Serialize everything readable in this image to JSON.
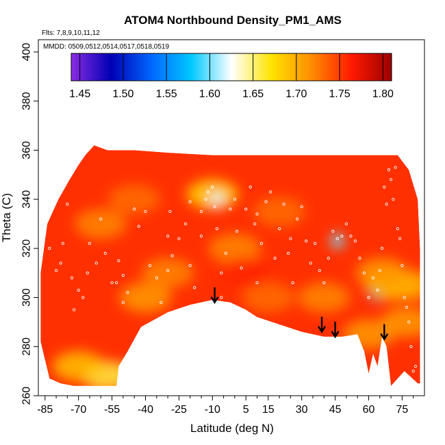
{
  "chart_data": {
    "type": "heatmap",
    "title": "ATOM4 Northbound Density_PM1_AMS",
    "annotations": {
      "flights": "Flts: 7,8,9,10,11,12",
      "dates": "MMDD: 0509,0512,0514,0517,0518,0519"
    },
    "xlabel": "Latitude (deg N)",
    "ylabel": "Theta (C)",
    "xlim": [
      -88,
      85
    ],
    "ylim": [
      260,
      405
    ],
    "x_ticks": [
      -85,
      -70,
      -55,
      -40,
      -25,
      -10,
      5,
      15,
      30,
      45,
      60,
      75
    ],
    "x_tick_labels": [
      "-85",
      "-70",
      "-55",
      "-40",
      "-25",
      "-10",
      "5",
      "15",
      "30",
      "45",
      "60",
      "75"
    ],
    "x_minor_ticks": [
      -80,
      -75,
      -65,
      -60,
      -50,
      -45,
      -35,
      -30,
      -20,
      -15,
      -5,
      0,
      10,
      20,
      25,
      35,
      40,
      50,
      55,
      65,
      70,
      80
    ],
    "y_ticks": [
      260,
      280,
      300,
      320,
      340,
      360,
      380,
      400
    ],
    "y_tick_labels": [
      "260",
      "280",
      "300",
      "320",
      "340",
      "360",
      "380",
      "400"
    ],
    "colorbar": {
      "range": [
        1.44,
        1.81
      ],
      "ticks": [
        1.45,
        1.5,
        1.55,
        1.6,
        1.65,
        1.7,
        1.75,
        1.8
      ],
      "tick_labels": [
        "1.45",
        "1.50",
        "1.55",
        "1.60",
        "1.65",
        "1.70",
        "1.75",
        "1.80"
      ],
      "color_stops": [
        "#8a2be2",
        "#0000b4",
        "#0066ff",
        "#00c8ff",
        "#ffffff",
        "#ffe400",
        "#ff8c00",
        "#ff1a00",
        "#9b0000"
      ]
    },
    "field": {
      "upper_boundary": [
        [
          -87,
          310
        ],
        [
          -84,
          330
        ],
        [
          -79,
          340
        ],
        [
          -74,
          348
        ],
        [
          -70,
          354
        ],
        [
          -67,
          358
        ],
        [
          -63,
          362
        ],
        [
          -57,
          360
        ],
        [
          -45,
          360
        ],
        [
          -30,
          359
        ],
        [
          -10,
          358
        ],
        [
          10,
          358
        ],
        [
          30,
          358
        ],
        [
          50,
          358
        ],
        [
          65,
          358
        ],
        [
          73,
          358
        ],
        [
          78,
          352
        ],
        [
          82,
          340
        ],
        [
          83,
          320
        ],
        [
          83,
          265
        ]
      ],
      "lower_boundary": [
        [
          -87,
          282
        ],
        [
          -83,
          267
        ],
        [
          -78,
          265
        ],
        [
          -72,
          264
        ],
        [
          -60,
          264
        ],
        [
          -53,
          264
        ],
        [
          -52,
          272
        ],
        [
          -48,
          278
        ],
        [
          -42,
          288
        ],
        [
          -30,
          294
        ],
        [
          -20,
          297
        ],
        [
          -10,
          299
        ],
        [
          -2,
          298
        ],
        [
          5,
          295
        ],
        [
          10,
          292
        ],
        [
          20,
          289
        ],
        [
          30,
          286
        ],
        [
          40,
          284
        ],
        [
          48,
          284
        ],
        [
          55,
          285
        ],
        [
          58,
          278
        ],
        [
          60,
          269
        ],
        [
          62,
          277
        ],
        [
          64,
          272
        ],
        [
          66,
          284
        ],
        [
          68,
          280
        ],
        [
          70,
          264
        ],
        [
          76,
          270
        ],
        [
          82,
          265
        ],
        [
          83,
          265
        ]
      ],
      "patches": [
        {
          "lat": -57,
          "theta": 268,
          "value": 1.66
        },
        {
          "lat": -70,
          "theta": 272,
          "value": 1.69
        },
        {
          "lat": -60,
          "theta": 330,
          "value": 1.72
        },
        {
          "lat": -40,
          "theta": 300,
          "value": 1.71
        },
        {
          "lat": -45,
          "theta": 340,
          "value": 1.73
        },
        {
          "lat": -30,
          "theta": 310,
          "value": 1.72
        },
        {
          "lat": -10,
          "theta": 342,
          "value": 1.68
        },
        {
          "lat": 0,
          "theta": 320,
          "value": 1.72
        },
        {
          "lat": 20,
          "theta": 335,
          "value": 1.73
        },
        {
          "lat": 15,
          "theta": 300,
          "value": 1.73
        },
        {
          "lat": 40,
          "theta": 300,
          "value": 1.72
        },
        {
          "lat": 46,
          "theta": 323,
          "value": 1.6
        },
        {
          "lat": 63,
          "theta": 302,
          "value": 1.57
        },
        {
          "lat": 70,
          "theta": 305,
          "value": 1.69
        },
        {
          "lat": 78,
          "theta": 305,
          "value": 1.7
        },
        {
          "lat": 77,
          "theta": 290,
          "value": 1.71
        },
        {
          "lat": 60,
          "theta": 285,
          "value": 1.71
        },
        {
          "lat": 66,
          "theta": 310,
          "value": 1.71
        },
        {
          "lat": -8,
          "theta": 340,
          "value": 1.62
        },
        {
          "lat": 5,
          "theta": 310,
          "value": 1.76
        }
      ]
    },
    "markers": [
      {
        "label": "arrow",
        "lat": -9,
        "theta": 298
      },
      {
        "label": "arrow",
        "lat": 39,
        "theta": 286
      },
      {
        "label": "arrow",
        "lat": 45,
        "theta": 284
      },
      {
        "label": "arrow",
        "lat": 67,
        "theta": 283
      }
    ],
    "sample_points": [
      [
        -83,
        320
      ],
      [
        -80,
        311
      ],
      [
        -78,
        314
      ],
      [
        -77,
        322
      ],
      [
        -75,
        338
      ],
      [
        -73,
        308
      ],
      [
        -72,
        295
      ],
      [
        -70,
        303
      ],
      [
        -68,
        300
      ],
      [
        -66,
        310
      ],
      [
        -65,
        322
      ],
      [
        -62,
        314
      ],
      [
        -60,
        332
      ],
      [
        -58,
        318
      ],
      [
        -55,
        306
      ],
      [
        -53,
        306
      ],
      [
        -52,
        315
      ],
      [
        -50,
        298
      ],
      [
        -48,
        302
      ],
      [
        -45,
        336
      ],
      [
        -43,
        329
      ],
      [
        -40,
        335
      ],
      [
        -38,
        313
      ],
      [
        -35,
        308
      ],
      [
        -33,
        298
      ],
      [
        -30,
        311
      ],
      [
        -29,
        335
      ],
      [
        -28,
        317
      ],
      [
        -25,
        324
      ],
      [
        -22,
        330
      ],
      [
        -20,
        313
      ],
      [
        -18,
        304
      ],
      [
        -15,
        325
      ],
      [
        -13,
        340
      ],
      [
        -12,
        343
      ],
      [
        -10,
        345
      ],
      [
        -9,
        337
      ],
      [
        -8,
        328
      ],
      [
        -6,
        300
      ],
      [
        -4,
        318
      ],
      [
        -2,
        336
      ],
      [
        0,
        340
      ],
      [
        1,
        327
      ],
      [
        3,
        312
      ],
      [
        5,
        336
      ],
      [
        7,
        345
      ],
      [
        9,
        330
      ],
      [
        10,
        306
      ],
      [
        12,
        322
      ],
      [
        14,
        339
      ],
      [
        16,
        343
      ],
      [
        18,
        316
      ],
      [
        20,
        328
      ],
      [
        22,
        338
      ],
      [
        24,
        318
      ],
      [
        26,
        306
      ],
      [
        28,
        332
      ],
      [
        30,
        337
      ],
      [
        32,
        323
      ],
      [
        34,
        314
      ],
      [
        36,
        322
      ],
      [
        38,
        311
      ],
      [
        40,
        306
      ],
      [
        42,
        316
      ],
      [
        44,
        327
      ],
      [
        46,
        324
      ],
      [
        48,
        325
      ],
      [
        50,
        330
      ],
      [
        52,
        325
      ],
      [
        54,
        323
      ],
      [
        56,
        316
      ],
      [
        58,
        310
      ],
      [
        60,
        300
      ],
      [
        62,
        308
      ],
      [
        64,
        303
      ],
      [
        65,
        311
      ],
      [
        66,
        320
      ],
      [
        67,
        345
      ],
      [
        68,
        338
      ],
      [
        69,
        352
      ],
      [
        70,
        348
      ],
      [
        71,
        340
      ],
      [
        72,
        353
      ],
      [
        73,
        328
      ],
      [
        74,
        324
      ],
      [
        75,
        313
      ],
      [
        76,
        300
      ],
      [
        77,
        296
      ],
      [
        78,
        290
      ],
      [
        79,
        280
      ],
      [
        80,
        270
      ],
      [
        81,
        272
      ],
      [
        -30,
        325
      ],
      [
        -20,
        339
      ],
      [
        10,
        334
      ],
      [
        25,
        324
      ],
      [
        -50,
        309
      ],
      [
        -6,
        310
      ],
      [
        -15,
        335
      ]
    ]
  }
}
